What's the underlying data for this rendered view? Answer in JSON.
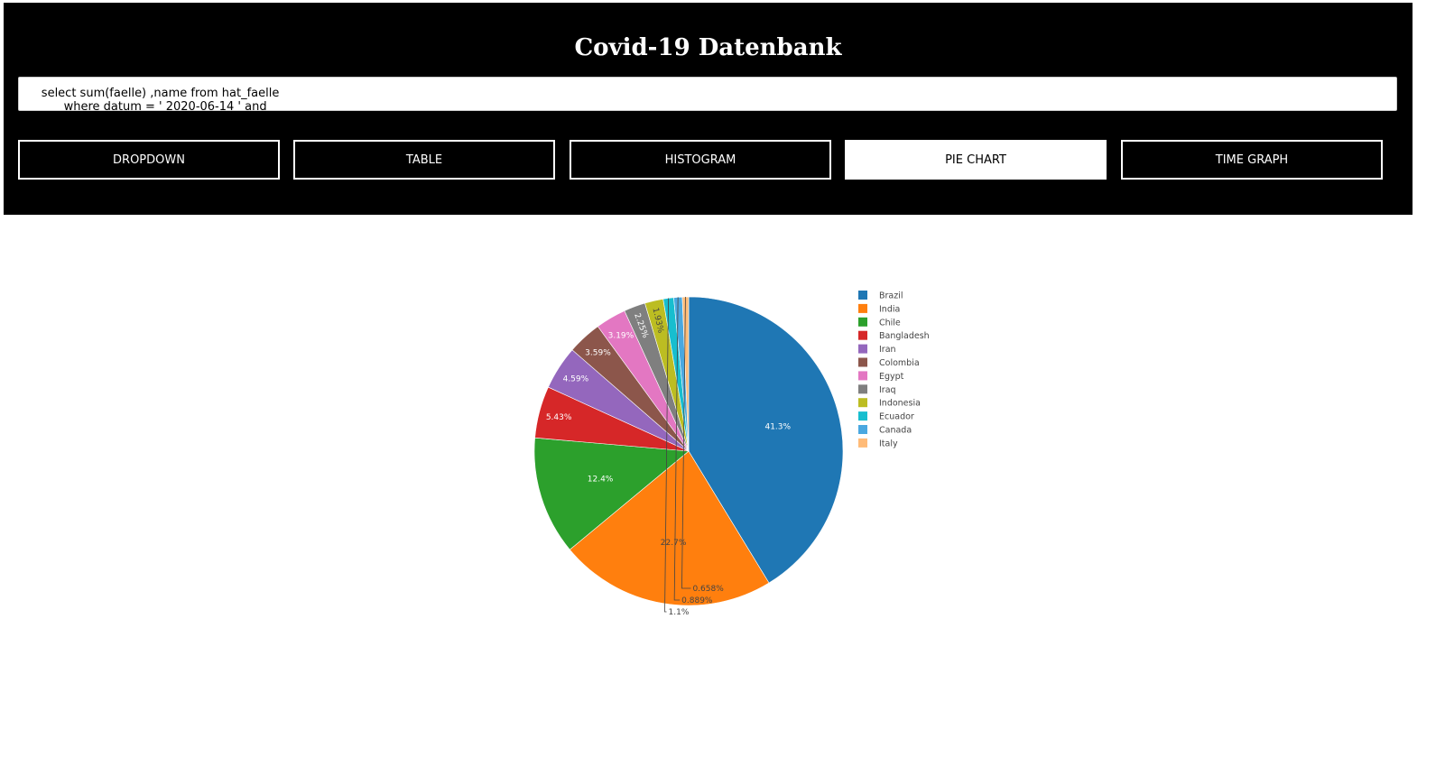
{
  "header": {
    "title": "Covid-19 Datenbank",
    "query": "      select sum(faelle) ,name from hat_faelle\n            where datum = ' 2020-06-14 ' and"
  },
  "tabs": [
    {
      "label": "DROPDOWN",
      "active": false
    },
    {
      "label": "TABLE",
      "active": false
    },
    {
      "label": "HISTOGRAM",
      "active": false
    },
    {
      "label": "PIE CHART",
      "active": true
    },
    {
      "label": "TIME GRAPH",
      "active": false
    }
  ],
  "chart_data": {
    "type": "pie",
    "labels": [
      "Brazil",
      "India",
      "Chile",
      "Bangladesh",
      "Iran",
      "Colombia",
      "Egypt",
      "Iraq",
      "Indonesia",
      "Ecuador",
      "Canada",
      "Italy"
    ],
    "values": [
      41.3,
      22.7,
      12.4,
      5.43,
      4.59,
      3.59,
      3.19,
      2.25,
      1.93,
      1.1,
      0.889,
      0.658
    ],
    "value_labels": [
      "41.3%",
      "22.7%",
      "12.4%",
      "5.43%",
      "4.59%",
      "3.59%",
      "3.19%",
      "2.25%",
      "1.93%",
      "1.1%",
      "0.889%",
      "0.658%"
    ],
    "colors": [
      "#1f77b4",
      "#ff7f0e",
      "#2ca02c",
      "#d62728",
      "#9467bd",
      "#8c564b",
      "#e377c2",
      "#7f7f7f",
      "#bcbd22",
      "#17becf",
      "#4aa8e0",
      "#ffbb78"
    ],
    "legend_position": "top-right",
    "direction": "clockwise",
    "start": "12 o'clock"
  }
}
